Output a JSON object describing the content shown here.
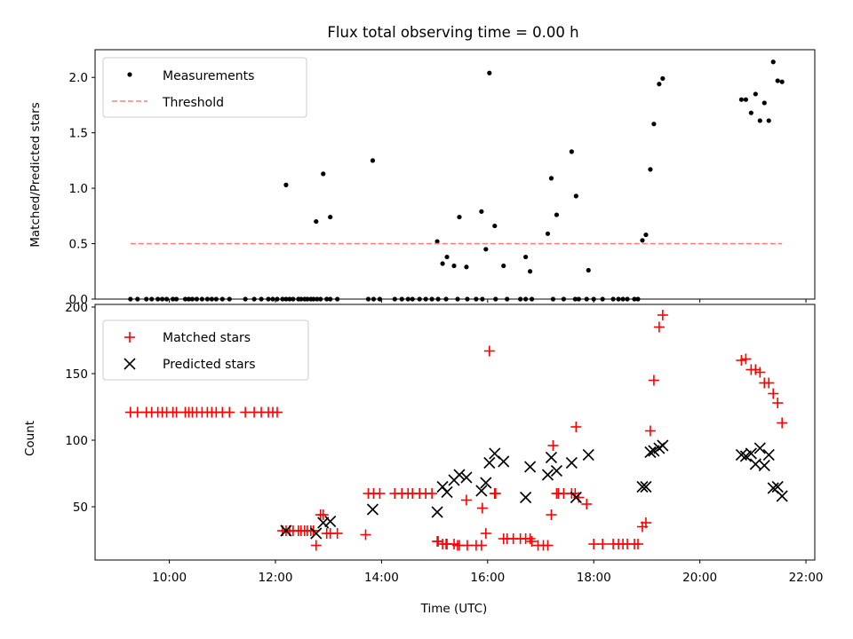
{
  "chart_data": [
    {
      "type": "scatter",
      "title": "Flux total observing time = 0.00 h",
      "ylabel": "Matched/Predicted stars",
      "xlim": [
        "08:36",
        "22:10"
      ],
      "ylim": [
        0,
        2.25
      ],
      "y_ticks": [
        "0.0",
        "0.5",
        "1.0",
        "1.5",
        "2.0"
      ],
      "legend_position": "top-left",
      "grid": false,
      "series": [
        {
          "name": "Measurements",
          "marker": "dot",
          "color": "#000000",
          "x": [
            "09:16",
            "09:24",
            "09:34",
            "09:40",
            "09:47",
            "09:52",
            "09:57",
            "10:04",
            "10:08",
            "10:18",
            "10:22",
            "10:26",
            "10:31",
            "10:37",
            "10:43",
            "10:48",
            "10:53",
            "11:00",
            "11:08",
            "11:26",
            "11:36",
            "11:44",
            "11:52",
            "11:57",
            "12:02",
            "12:08",
            "12:12",
            "12:16",
            "12:20",
            "12:26",
            "12:29",
            "12:33",
            "12:36",
            "12:40",
            "12:43",
            "12:47",
            "12:51",
            "12:58",
            "13:02",
            "13:10",
            "13:45",
            "13:51",
            "13:58",
            "14:15",
            "14:23",
            "14:30",
            "14:35",
            "14:43",
            "14:50",
            "14:57",
            "15:04",
            "15:13",
            "15:26",
            "15:37",
            "15:47",
            "15:54",
            "16:09",
            "16:22",
            "16:37",
            "16:43",
            "16:50",
            "17:14",
            "17:26",
            "17:39",
            "17:43",
            "17:52",
            "18:00",
            "18:10",
            "18:22",
            "18:28",
            "18:33",
            "18:38",
            "18:46",
            "18:50",
            "12:12",
            "12:46",
            "12:54",
            "13:02",
            "13:50",
            "15:03",
            "15:09",
            "15:14",
            "15:22",
            "15:28",
            "15:36",
            "15:53",
            "15:58",
            "16:02",
            "16:08",
            "16:18",
            "16:43",
            "16:48",
            "17:08",
            "17:12",
            "17:18",
            "17:35",
            "17:40",
            "17:54",
            "18:55",
            "18:59",
            "19:04",
            "19:08",
            "19:14",
            "19:18",
            "20:47",
            "20:52",
            "20:58",
            "21:03",
            "21:08",
            "21:13",
            "21:18",
            "21:23",
            "21:28",
            "21:33"
          ],
          "y": [
            0,
            0,
            0,
            0,
            0,
            0,
            0,
            0,
            0,
            0,
            0,
            0,
            0,
            0,
            0,
            0,
            0,
            0,
            0,
            0,
            0,
            0,
            0,
            0,
            0,
            0,
            0,
            0,
            0,
            0,
            0,
            0,
            0,
            0,
            0,
            0,
            0,
            0,
            0,
            0,
            0,
            0,
            0,
            0,
            0,
            0,
            0,
            0,
            0,
            0,
            0,
            0,
            0,
            0,
            0,
            0,
            0,
            0,
            0,
            0,
            0,
            0,
            0,
            0,
            0,
            0,
            0,
            0,
            0,
            0,
            0,
            0,
            0,
            0,
            1.03,
            0.7,
            1.13,
            0.74,
            1.25,
            0.52,
            0.32,
            0.38,
            0.3,
            0.74,
            0.29,
            0.79,
            0.45,
            2.04,
            0.66,
            0.3,
            0.38,
            0.25,
            0.59,
            1.09,
            0.76,
            1.33,
            0.93,
            0.26,
            0.53,
            0.58,
            1.17,
            1.58,
            1.94,
            1.99,
            1.8,
            1.8,
            1.68,
            1.85,
            1.61,
            1.77,
            1.61,
            2.14,
            1.97,
            1.96
          ]
        },
        {
          "name": "Threshold",
          "style": "dashed",
          "color": "#ff7f7f",
          "x": [
            "09:16",
            "21:33"
          ],
          "y": [
            0.5,
            0.5
          ]
        }
      ]
    },
    {
      "type": "scatter",
      "xlabel": "Time (UTC)",
      "ylabel": "Count",
      "xlim": [
        "08:36",
        "22:10"
      ],
      "ylim": [
        10,
        202
      ],
      "x_ticks": [
        "10:00",
        "12:00",
        "14:00",
        "16:00",
        "18:00",
        "20:00",
        "22:00"
      ],
      "y_ticks": [
        "50",
        "100",
        "150",
        "200"
      ],
      "legend_position": "top-left",
      "grid": false,
      "series": [
        {
          "name": "Matched stars",
          "marker": "plus",
          "color": "#ff0000",
          "x": [
            "09:16",
            "09:24",
            "09:34",
            "09:40",
            "09:47",
            "09:52",
            "09:57",
            "10:04",
            "10:08",
            "10:18",
            "10:22",
            "10:26",
            "10:31",
            "10:37",
            "10:43",
            "10:48",
            "10:53",
            "11:00",
            "11:08",
            "11:26",
            "11:36",
            "11:44",
            "11:52",
            "11:57",
            "12:02",
            "12:08",
            "12:12",
            "12:16",
            "12:20",
            "12:26",
            "12:29",
            "12:33",
            "12:36",
            "12:40",
            "12:43",
            "12:46",
            "12:51",
            "12:54",
            "12:58",
            "13:02",
            "13:10",
            "13:42",
            "13:45",
            "13:51",
            "13:58",
            "14:15",
            "14:23",
            "14:30",
            "14:35",
            "14:43",
            "14:50",
            "14:57",
            "15:03",
            "15:04",
            "15:09",
            "15:13",
            "15:14",
            "15:22",
            "15:26",
            "15:28",
            "15:36",
            "15:37",
            "15:47",
            "15:53",
            "15:54",
            "15:58",
            "16:02",
            "16:08",
            "16:09",
            "16:18",
            "16:22",
            "16:29",
            "16:37",
            "16:43",
            "16:48",
            "16:50",
            "16:57",
            "17:03",
            "17:08",
            "17:12",
            "17:14",
            "17:18",
            "17:20",
            "17:26",
            "17:35",
            "17:39",
            "17:40",
            "17:43",
            "17:52",
            "18:00",
            "18:10",
            "18:22",
            "18:28",
            "18:33",
            "18:38",
            "18:46",
            "18:50",
            "18:55",
            "18:59",
            "19:04",
            "19:08",
            "19:14",
            "19:18",
            "20:47",
            "20:52",
            "20:58",
            "21:03",
            "21:08",
            "21:13",
            "21:18",
            "21:23",
            "21:28",
            "21:33"
          ],
          "y": [
            121,
            121,
            121,
            121,
            121,
            121,
            121,
            121,
            121,
            121,
            121,
            121,
            121,
            121,
            121,
            121,
            121,
            121,
            121,
            121,
            121,
            121,
            121,
            121,
            121,
            32,
            32,
            32,
            32,
            32,
            32,
            32,
            32,
            32,
            32,
            21,
            44,
            44,
            30,
            30,
            30,
            29,
            60,
            60,
            60,
            60,
            60,
            60,
            60,
            60,
            60,
            60,
            24,
            24,
            22,
            22,
            22,
            22,
            21,
            21,
            55,
            21,
            21,
            21,
            49,
            30,
            167,
            60,
            60,
            26,
            26,
            26,
            26,
            26,
            26,
            24,
            21,
            21,
            21,
            44,
            96,
            60,
            60,
            60,
            60,
            60,
            110,
            57,
            52,
            22,
            22,
            22,
            22,
            22,
            22,
            22,
            22,
            35,
            38,
            107,
            145,
            185,
            194,
            160,
            161,
            153,
            153,
            151,
            143,
            143,
            135,
            128,
            113
          ]
        },
        {
          "name": "Predicted stars",
          "marker": "x",
          "color": "#000000",
          "x": [
            "12:12",
            "12:46",
            "12:54",
            "13:02",
            "13:50",
            "15:03",
            "15:09",
            "15:14",
            "15:22",
            "15:28",
            "15:36",
            "15:53",
            "15:58",
            "16:02",
            "16:08",
            "16:18",
            "16:43",
            "16:48",
            "17:08",
            "17:12",
            "17:18",
            "17:35",
            "17:40",
            "17:54",
            "18:55",
            "18:59",
            "19:04",
            "19:08",
            "19:14",
            "19:18",
            "20:47",
            "20:52",
            "20:58",
            "21:03",
            "21:08",
            "21:13",
            "21:18",
            "21:23",
            "21:28",
            "21:33"
          ],
          "y": [
            32,
            30,
            38,
            39,
            48,
            46,
            65,
            61,
            70,
            74,
            72,
            62,
            68,
            83,
            90,
            84,
            57,
            80,
            74,
            87,
            77,
            83,
            57,
            89,
            65,
            65,
            91,
            92,
            94,
            96,
            89,
            88,
            90,
            82,
            94,
            81,
            89,
            64,
            65,
            58
          ]
        }
      ]
    }
  ]
}
